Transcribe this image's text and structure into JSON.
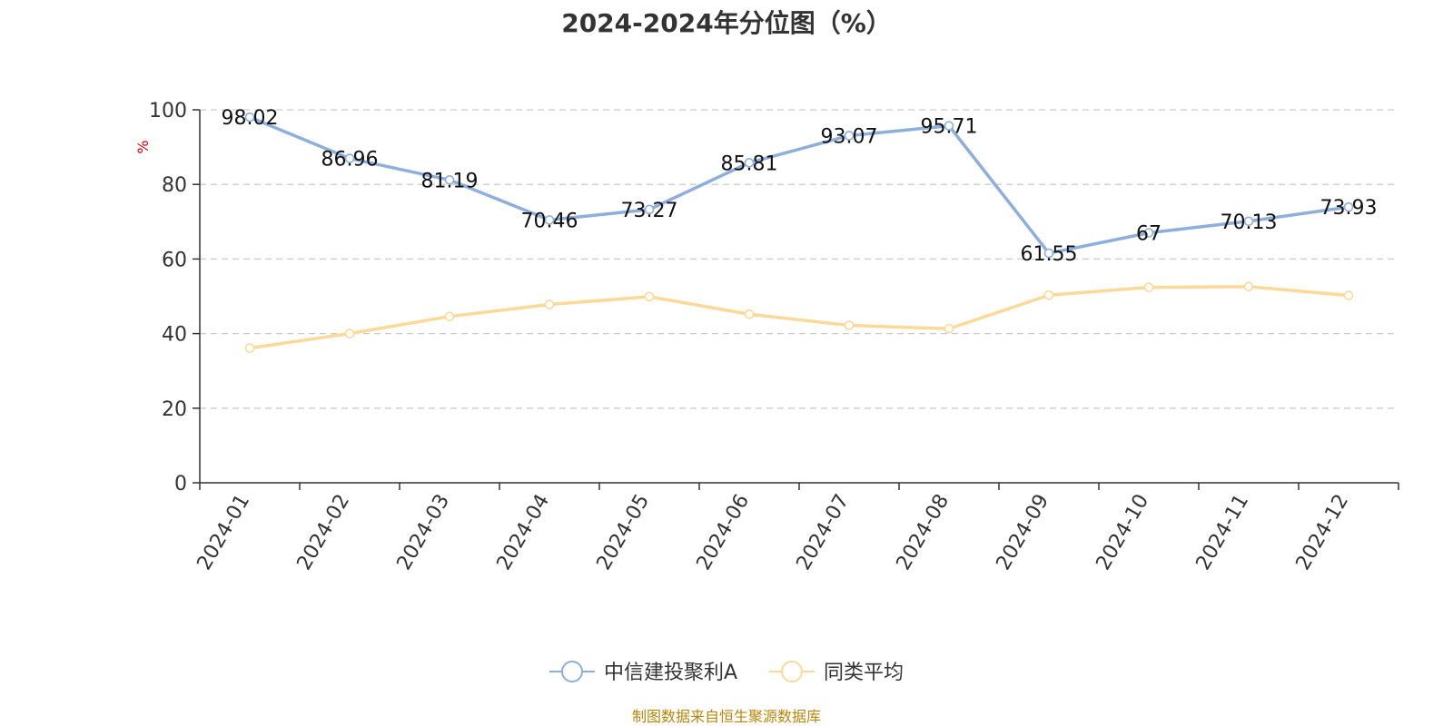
{
  "chart_data": {
    "type": "line",
    "title": "2024-2024年分位图（%）",
    "ylabel": "%",
    "xlabel": "",
    "ylim": [
      0,
      100
    ],
    "yticks": [
      0,
      20,
      40,
      60,
      80,
      100
    ],
    "grid": true,
    "legend_position": "bottom",
    "categories": [
      "2024-01",
      "2024-02",
      "2024-03",
      "2024-04",
      "2024-05",
      "2024-06",
      "2024-07",
      "2024-08",
      "2024-09",
      "2024-10",
      "2024-11",
      "2024-12"
    ],
    "series": [
      {
        "name": "中信建投聚利A",
        "color": "#8eaedb",
        "show_labels": true,
        "values": [
          98.02,
          86.96,
          81.19,
          70.46,
          73.27,
          85.81,
          93.07,
          95.71,
          61.55,
          67,
          70.13,
          73.93
        ]
      },
      {
        "name": "同类平均",
        "color": "#fcd998",
        "show_labels": false,
        "values": [
          36.1,
          40.0,
          44.6,
          47.8,
          49.9,
          45.2,
          42.2,
          41.3,
          50.3,
          52.4,
          52.6,
          50.2
        ]
      }
    ]
  },
  "source_note": "制图数据来自恒生聚源数据库"
}
